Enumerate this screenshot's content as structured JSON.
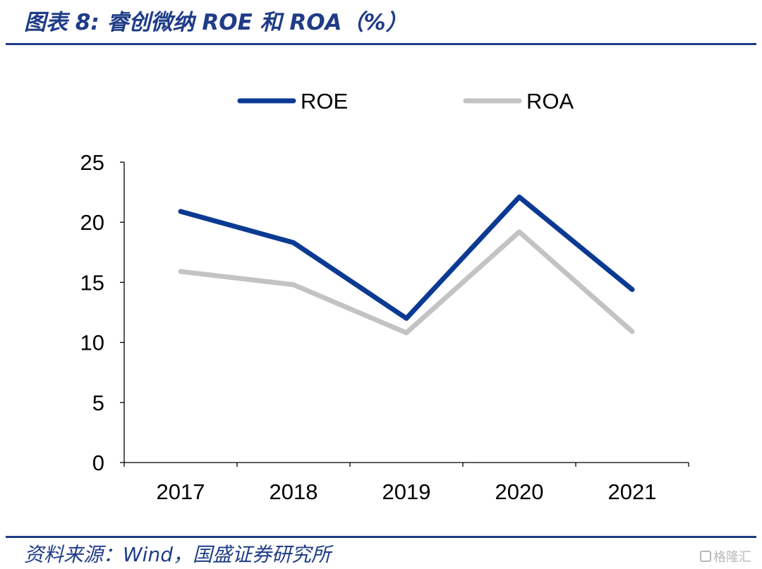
{
  "header": {
    "title": "图表 8:  睿创微纳 ROE 和 ROA（%）"
  },
  "footer": {
    "source": "资料来源：Wind，国盛证券研究所",
    "watermark": "格隆汇"
  },
  "colors": {
    "roe": "#0b3a93",
    "roa": "#c3c3c3",
    "accent": "#1f3c88"
  },
  "chart_data": {
    "type": "line",
    "categories": [
      "2017",
      "2018",
      "2019",
      "2020",
      "2021"
    ],
    "series": [
      {
        "name": "ROE",
        "values": [
          20.9,
          18.3,
          12.0,
          22.1,
          14.4
        ]
      },
      {
        "name": "ROA",
        "values": [
          15.9,
          14.8,
          10.8,
          19.2,
          10.9
        ]
      }
    ],
    "ylim": [
      0,
      25
    ],
    "yticks": [
      "0",
      "5",
      "10",
      "15",
      "20",
      "25"
    ],
    "legend": "top",
    "grid": false
  }
}
